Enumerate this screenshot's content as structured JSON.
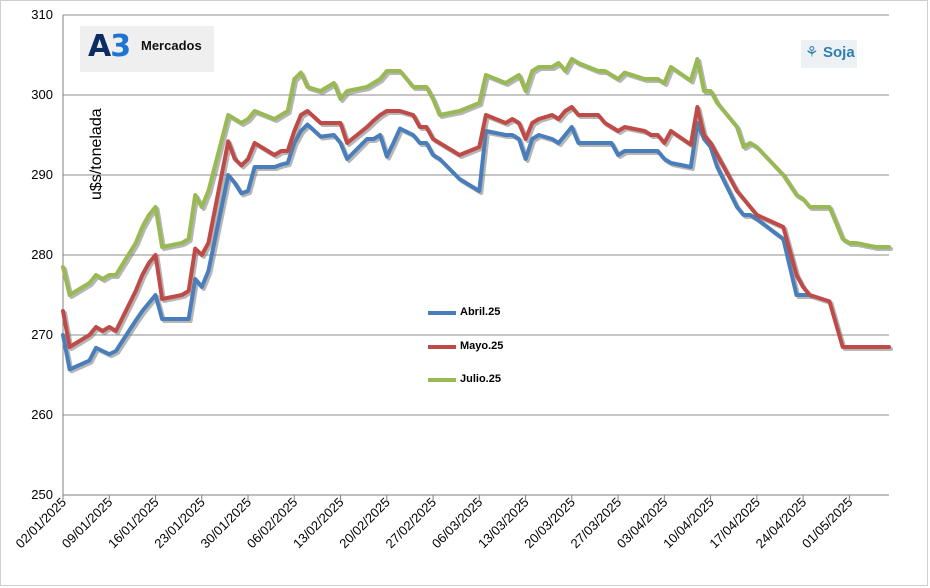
{
  "brand": {
    "logo_mark": "A",
    "logo_digit": "3",
    "logo_text": "Mercados"
  },
  "badge": {
    "icon": "wheat-icon",
    "text": "Soja"
  },
  "colors": {
    "Abril.25": "#4a7ebb",
    "Mayo.25": "#be4b48",
    "Julio.25": "#98b954",
    "grid": "#8c8c8c"
  },
  "chart_data": {
    "type": "line",
    "title": "",
    "xlabel": "",
    "ylabel": "u$s/tonelada",
    "ylim": [
      250,
      310
    ],
    "yticks": [
      250,
      260,
      270,
      280,
      290,
      300,
      310
    ],
    "grid": true,
    "legend_position": "center",
    "xlim": [
      "02/01/2025",
      "07/05/2025"
    ],
    "x_tick_labels": [
      "02/01/2025",
      "09/01/2025",
      "16/01/2025",
      "23/01/2025",
      "30/01/2025",
      "06/02/2025",
      "13/02/2025",
      "20/02/2025",
      "27/02/2025",
      "06/03/2025",
      "13/03/2025",
      "20/03/2025",
      "27/03/2025",
      "03/04/2025",
      "10/04/2025",
      "17/04/2025",
      "24/04/2025",
      "01/05/2025"
    ],
    "series": [
      {
        "name": "Abril.25",
        "points": [
          [
            "02/01/2025",
            270.0
          ],
          [
            "03/01/2025",
            265.7
          ],
          [
            "06/01/2025",
            266.8
          ],
          [
            "07/01/2025",
            268.4
          ],
          [
            "08/01/2025",
            268.0
          ],
          [
            "09/01/2025",
            267.6
          ],
          [
            "10/01/2025",
            268.0
          ],
          [
            "13/01/2025",
            271.8
          ],
          [
            "14/01/2025",
            273.0
          ],
          [
            "15/01/2025",
            274.0
          ],
          [
            "16/01/2025",
            275.0
          ],
          [
            "17/01/2025",
            272.0
          ],
          [
            "20/01/2025",
            272.0
          ],
          [
            "21/01/2025",
            272.0
          ],
          [
            "22/01/2025",
            277.0
          ],
          [
            "23/01/2025",
            276.0
          ],
          [
            "24/01/2025",
            278.0
          ],
          [
            "27/01/2025",
            290.0
          ],
          [
            "28/01/2025",
            289.0
          ],
          [
            "29/01/2025",
            287.7
          ],
          [
            "30/01/2025",
            288.0
          ],
          [
            "31/01/2025",
            291.0
          ],
          [
            "03/02/2025",
            291.0
          ],
          [
            "04/02/2025",
            291.3
          ],
          [
            "05/02/2025",
            291.5
          ],
          [
            "06/02/2025",
            294.0
          ],
          [
            "07/02/2025",
            295.5
          ],
          [
            "08/02/2025",
            296.3
          ],
          [
            "10/02/2025",
            294.8
          ],
          [
            "12/02/2025",
            295.0
          ],
          [
            "13/02/2025",
            294.0
          ],
          [
            "14/02/2025",
            292.0
          ],
          [
            "17/02/2025",
            294.5
          ],
          [
            "18/02/2025",
            294.5
          ],
          [
            "19/02/2025",
            295.0
          ],
          [
            "20/02/2025",
            292.3
          ],
          [
            "21/02/2025",
            294.0
          ],
          [
            "22/02/2025",
            295.8
          ],
          [
            "24/02/2025",
            295.0
          ],
          [
            "25/02/2025",
            294.0
          ],
          [
            "26/02/2025",
            294.0
          ],
          [
            "27/02/2025",
            292.5
          ],
          [
            "28/02/2025",
            292.0
          ],
          [
            "03/03/2025",
            289.5
          ],
          [
            "06/03/2025",
            288.0
          ],
          [
            "07/03/2025",
            295.5
          ],
          [
            "10/03/2025",
            295.0
          ],
          [
            "11/03/2025",
            295.0
          ],
          [
            "12/03/2025",
            294.5
          ],
          [
            "13/03/2025",
            292.0
          ],
          [
            "14/03/2025",
            294.5
          ],
          [
            "15/03/2025",
            295.0
          ],
          [
            "17/03/2025",
            294.5
          ],
          [
            "18/03/2025",
            294.0
          ],
          [
            "19/03/2025",
            295.0
          ],
          [
            "20/03/2025",
            296.0
          ],
          [
            "21/03/2025",
            294.0
          ],
          [
            "24/03/2025",
            294.0
          ],
          [
            "25/03/2025",
            294.0
          ],
          [
            "26/03/2025",
            294.0
          ],
          [
            "27/03/2025",
            292.5
          ],
          [
            "28/03/2025",
            293.0
          ],
          [
            "31/03/2025",
            293.0
          ],
          [
            "01/04/2025",
            293.0
          ],
          [
            "02/04/2025",
            293.0
          ],
          [
            "03/04/2025",
            292.0
          ],
          [
            "04/04/2025",
            291.5
          ],
          [
            "07/04/2025",
            291.0
          ],
          [
            "08/04/2025",
            296.5
          ],
          [
            "09/04/2025",
            294.5
          ],
          [
            "10/04/2025",
            293.5
          ],
          [
            "11/04/2025",
            291.0
          ],
          [
            "14/04/2025",
            286.0
          ],
          [
            "15/04/2025",
            285.0
          ],
          [
            "16/04/2025",
            285.0
          ],
          [
            "17/04/2025",
            284.5
          ],
          [
            "21/04/2025",
            282.0
          ],
          [
            "23/04/2025",
            275.0
          ],
          [
            "24/04/2025",
            275.0
          ],
          [
            "25/04/2025",
            275.0
          ]
        ]
      },
      {
        "name": "Mayo.25",
        "points": [
          [
            "02/01/2025",
            273.0
          ],
          [
            "03/01/2025",
            268.5
          ],
          [
            "06/01/2025",
            270.0
          ],
          [
            "07/01/2025",
            271.0
          ],
          [
            "08/01/2025",
            270.5
          ],
          [
            "09/01/2025",
            271.0
          ],
          [
            "10/01/2025",
            270.5
          ],
          [
            "13/01/2025",
            275.5
          ],
          [
            "14/01/2025",
            277.5
          ],
          [
            "15/01/2025",
            279.0
          ],
          [
            "16/01/2025",
            280.0
          ],
          [
            "17/01/2025",
            274.5
          ],
          [
            "20/01/2025",
            275.0
          ],
          [
            "21/01/2025",
            275.5
          ],
          [
            "22/01/2025",
            280.8
          ],
          [
            "23/01/2025",
            280.0
          ],
          [
            "24/01/2025",
            281.5
          ],
          [
            "27/01/2025",
            294.2
          ],
          [
            "28/01/2025",
            292.0
          ],
          [
            "29/01/2025",
            291.2
          ],
          [
            "30/01/2025",
            292.0
          ],
          [
            "31/01/2025",
            294.0
          ],
          [
            "03/02/2025",
            292.5
          ],
          [
            "04/02/2025",
            293.0
          ],
          [
            "05/02/2025",
            293.0
          ],
          [
            "06/02/2025",
            295.5
          ],
          [
            "07/02/2025",
            297.5
          ],
          [
            "08/02/2025",
            298.0
          ],
          [
            "10/02/2025",
            296.5
          ],
          [
            "12/02/2025",
            296.5
          ],
          [
            "13/02/2025",
            296.5
          ],
          [
            "14/02/2025",
            294.0
          ],
          [
            "17/02/2025",
            296.0
          ],
          [
            "18/02/2025",
            296.8
          ],
          [
            "19/02/2025",
            297.5
          ],
          [
            "20/02/2025",
            298.0
          ],
          [
            "21/02/2025",
            298.0
          ],
          [
            "22/02/2025",
            298.0
          ],
          [
            "24/02/2025",
            297.5
          ],
          [
            "25/02/2025",
            296.0
          ],
          [
            "26/02/2025",
            296.0
          ],
          [
            "27/02/2025",
            294.5
          ],
          [
            "28/02/2025",
            294.0
          ],
          [
            "03/03/2025",
            292.5
          ],
          [
            "06/03/2025",
            293.5
          ],
          [
            "07/03/2025",
            297.5
          ],
          [
            "10/03/2025",
            296.5
          ],
          [
            "11/03/2025",
            297.0
          ],
          [
            "12/03/2025",
            296.5
          ],
          [
            "13/03/2025",
            294.5
          ],
          [
            "14/03/2025",
            296.5
          ],
          [
            "15/03/2025",
            297.0
          ],
          [
            "17/03/2025",
            297.5
          ],
          [
            "18/03/2025",
            297.0
          ],
          [
            "19/03/2025",
            298.0
          ],
          [
            "20/03/2025",
            298.5
          ],
          [
            "21/03/2025",
            297.5
          ],
          [
            "24/03/2025",
            297.5
          ],
          [
            "25/03/2025",
            296.5
          ],
          [
            "26/03/2025",
            296.0
          ],
          [
            "27/03/2025",
            295.5
          ],
          [
            "28/03/2025",
            296.0
          ],
          [
            "31/03/2025",
            295.5
          ],
          [
            "01/04/2025",
            295.0
          ],
          [
            "02/04/2025",
            295.0
          ],
          [
            "03/04/2025",
            294.0
          ],
          [
            "04/04/2025",
            295.5
          ],
          [
            "07/04/2025",
            293.8
          ],
          [
            "08/04/2025",
            298.5
          ],
          [
            "09/04/2025",
            295.0
          ],
          [
            "10/04/2025",
            294.0
          ],
          [
            "11/04/2025",
            292.5
          ],
          [
            "14/04/2025",
            288.0
          ],
          [
            "15/04/2025",
            287.0
          ],
          [
            "16/04/2025",
            286.0
          ],
          [
            "17/04/2025",
            285.0
          ],
          [
            "21/04/2025",
            283.5
          ],
          [
            "23/04/2025",
            277.5
          ],
          [
            "24/04/2025",
            276.0
          ],
          [
            "25/04/2025",
            275.0
          ],
          [
            "28/04/2025",
            274.2
          ],
          [
            "30/04/2025",
            268.5
          ],
          [
            "01/05/2025",
            268.5
          ],
          [
            "02/05/2025",
            268.5
          ],
          [
            "05/05/2025",
            268.5
          ],
          [
            "07/05/2025",
            268.5
          ]
        ]
      },
      {
        "name": "Julio.25",
        "points": [
          [
            "02/01/2025",
            278.5
          ],
          [
            "03/01/2025",
            275.0
          ],
          [
            "06/01/2025",
            276.5
          ],
          [
            "07/01/2025",
            277.5
          ],
          [
            "08/01/2025",
            277.0
          ],
          [
            "09/01/2025",
            277.5
          ],
          [
            "10/01/2025",
            277.5
          ],
          [
            "13/01/2025",
            281.5
          ],
          [
            "14/01/2025",
            283.5
          ],
          [
            "15/01/2025",
            285.0
          ],
          [
            "16/01/2025",
            286.0
          ],
          [
            "17/01/2025",
            281.0
          ],
          [
            "20/01/2025",
            281.5
          ],
          [
            "21/01/2025",
            282.0
          ],
          [
            "22/01/2025",
            287.5
          ],
          [
            "23/01/2025",
            286.0
          ],
          [
            "24/01/2025",
            288.0
          ],
          [
            "27/01/2025",
            297.5
          ],
          [
            "28/01/2025",
            297.0
          ],
          [
            "29/01/2025",
            296.5
          ],
          [
            "30/01/2025",
            297.0
          ],
          [
            "31/01/2025",
            298.0
          ],
          [
            "03/02/2025",
            297.0
          ],
          [
            "04/02/2025",
            297.5
          ],
          [
            "05/02/2025",
            298.0
          ],
          [
            "06/02/2025",
            302.0
          ],
          [
            "07/02/2025",
            302.8
          ],
          [
            "08/02/2025",
            301.0
          ],
          [
            "10/02/2025",
            300.5
          ],
          [
            "12/02/2025",
            301.5
          ],
          [
            "13/02/2025",
            299.5
          ],
          [
            "14/02/2025",
            300.5
          ],
          [
            "17/02/2025",
            301.0
          ],
          [
            "18/02/2025",
            301.5
          ],
          [
            "19/02/2025",
            302.0
          ],
          [
            "20/02/2025",
            303.0
          ],
          [
            "21/02/2025",
            303.0
          ],
          [
            "22/02/2025",
            303.0
          ],
          [
            "24/02/2025",
            301.0
          ],
          [
            "25/02/2025",
            301.0
          ],
          [
            "26/02/2025",
            301.0
          ],
          [
            "27/02/2025",
            299.5
          ],
          [
            "28/02/2025",
            297.5
          ],
          [
            "03/03/2025",
            298.0
          ],
          [
            "06/03/2025",
            299.0
          ],
          [
            "07/03/2025",
            302.5
          ],
          [
            "10/03/2025",
            301.5
          ],
          [
            "11/03/2025",
            302.0
          ],
          [
            "12/03/2025",
            302.5
          ],
          [
            "13/03/2025",
            300.5
          ],
          [
            "14/03/2025",
            303.0
          ],
          [
            "15/03/2025",
            303.5
          ],
          [
            "17/03/2025",
            303.5
          ],
          [
            "18/03/2025",
            304.0
          ],
          [
            "19/03/2025",
            303.0
          ],
          [
            "20/03/2025",
            304.5
          ],
          [
            "21/03/2025",
            304.0
          ],
          [
            "24/03/2025",
            303.0
          ],
          [
            "25/03/2025",
            303.0
          ],
          [
            "26/03/2025",
            302.5
          ],
          [
            "27/03/2025",
            302.0
          ],
          [
            "28/03/2025",
            302.8
          ],
          [
            "31/03/2025",
            302.0
          ],
          [
            "01/04/2025",
            302.0
          ],
          [
            "02/04/2025",
            302.0
          ],
          [
            "03/04/2025",
            301.5
          ],
          [
            "04/04/2025",
            303.5
          ],
          [
            "07/04/2025",
            301.8
          ],
          [
            "08/04/2025",
            304.5
          ],
          [
            "09/04/2025",
            300.5
          ],
          [
            "10/04/2025",
            300.5
          ],
          [
            "11/04/2025",
            299.0
          ],
          [
            "14/04/2025",
            296.0
          ],
          [
            "15/04/2025",
            293.5
          ],
          [
            "16/04/2025",
            294.0
          ],
          [
            "17/04/2025",
            293.5
          ],
          [
            "21/04/2025",
            290.0
          ],
          [
            "23/04/2025",
            287.5
          ],
          [
            "24/04/2025",
            287.0
          ],
          [
            "25/04/2025",
            286.0
          ],
          [
            "28/04/2025",
            286.0
          ],
          [
            "30/04/2025",
            282.0
          ],
          [
            "01/05/2025",
            281.5
          ],
          [
            "02/05/2025",
            281.5
          ],
          [
            "05/05/2025",
            281.0
          ],
          [
            "07/05/2025",
            281.0
          ]
        ]
      }
    ]
  }
}
